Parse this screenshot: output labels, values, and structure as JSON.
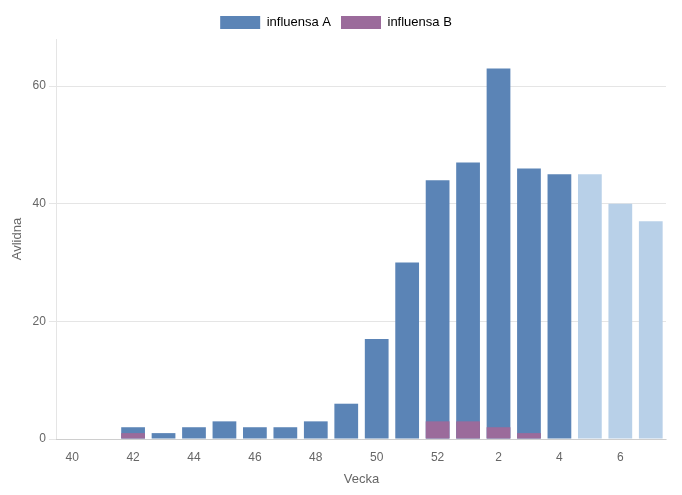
{
  "chart_data": {
    "type": "bar",
    "xlabel": "Vecka",
    "ylabel": "Avlidna",
    "categories": [
      "40",
      null,
      "42",
      null,
      "44",
      null,
      "46",
      null,
      "48",
      null,
      "50",
      null,
      "52",
      null,
      "2",
      null,
      "4",
      null,
      "6",
      null
    ],
    "series": [
      {
        "name": "influensa A",
        "color": "#5b84b6",
        "colors": [
          "#5b84b6",
          "#5b84b6",
          "#5b84b6",
          "#5b84b6",
          "#5b84b6",
          "#5b84b6",
          "#5b84b6",
          "#5b84b6",
          "#5b84b6",
          "#5b84b6",
          "#5b84b6",
          "#5b84b6",
          "#5b84b6",
          "#5b84b6",
          "#5b84b6",
          "#5b84b6",
          "#5b84b6",
          "#b8d0e8",
          "#b8d0e8",
          "#b8d0e8"
        ],
        "values": [
          0,
          0,
          2,
          1,
          2,
          3,
          2,
          2,
          3,
          6,
          17,
          30,
          44,
          47,
          63,
          46,
          45,
          45,
          40,
          37
        ]
      },
      {
        "name": "influensa B",
        "color": "#9b6b9b",
        "values": [
          0,
          0,
          1,
          0,
          0,
          0,
          0,
          0,
          0,
          0,
          0,
          0,
          3,
          3,
          2,
          1,
          0,
          0,
          0,
          0
        ]
      }
    ],
    "ylim": [
      0,
      68
    ],
    "yticks": [
      0,
      20,
      40,
      60
    ],
    "grid": "y",
    "legend": "top"
  }
}
